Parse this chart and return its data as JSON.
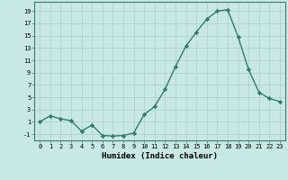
{
  "x": [
    0,
    1,
    2,
    3,
    4,
    5,
    6,
    7,
    8,
    9,
    10,
    11,
    12,
    13,
    14,
    15,
    16,
    17,
    18,
    19,
    20,
    21,
    22,
    23
  ],
  "y": [
    1,
    2,
    1.5,
    1.2,
    -0.5,
    0.5,
    -1.2,
    -1.3,
    -1.2,
    -0.8,
    2.2,
    3.5,
    6.3,
    10.0,
    13.3,
    15.6,
    17.7,
    19.0,
    19.2,
    14.8,
    9.5,
    5.8,
    4.8,
    4.3
  ],
  "line_color": "#2e7d6e",
  "marker": "D",
  "marker_size": 2.2,
  "bg_color": "#c8e8e5",
  "grid_color": "#b0ccc8",
  "xlabel": "Humidex (Indice chaleur)",
  "xlim": [
    -0.5,
    23.5
  ],
  "ylim": [
    -2,
    20.5
  ],
  "yticks": [
    -1,
    1,
    3,
    5,
    7,
    9,
    11,
    13,
    15,
    17,
    19
  ],
  "xticks": [
    0,
    1,
    2,
    3,
    4,
    5,
    6,
    7,
    8,
    9,
    10,
    11,
    12,
    13,
    14,
    15,
    16,
    17,
    18,
    19,
    20,
    21,
    22,
    23
  ],
  "xtick_labels": [
    "0",
    "1",
    "2",
    "3",
    "4",
    "5",
    "6",
    "7",
    "8",
    "9",
    "10",
    "11",
    "12",
    "13",
    "14",
    "15",
    "16",
    "17",
    "18",
    "19",
    "20",
    "21",
    "22",
    "23"
  ],
  "ytick_labels": [
    "-1",
    "1",
    "3",
    "5",
    "7",
    "9",
    "11",
    "13",
    "15",
    "17",
    "19"
  ],
  "tick_font_size": 5.0,
  "xlabel_font_size": 6.5,
  "line_width": 1.0,
  "spine_color": "#3a7a70"
}
